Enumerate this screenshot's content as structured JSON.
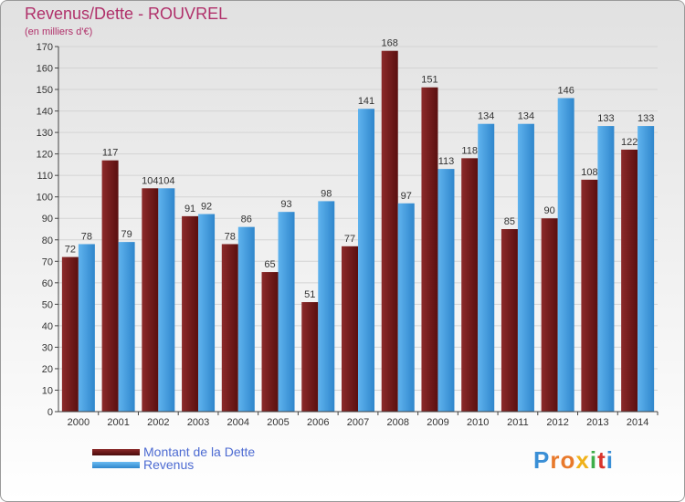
{
  "header": {
    "title": "Revenus/Dette - ROUVREL",
    "subtitle": "(en milliers d'€)"
  },
  "colors": {
    "dette": "#7a1f1f",
    "revenus": "#4aa3e3",
    "title": "#b0306a",
    "legend_text": "#4d6bd2"
  },
  "legend": {
    "items": [
      {
        "label": "Montant de la Dette",
        "color": "#6b1414"
      },
      {
        "label": "Revenus",
        "color": "#4aa3e3"
      }
    ]
  },
  "logo": {
    "text": "Proxiti"
  },
  "chart_data": {
    "type": "bar",
    "title": "Revenus/Dette - ROUVREL",
    "subtitle": "(en milliers d'€)",
    "xlabel": "",
    "ylabel": "",
    "categories": [
      "2000",
      "2001",
      "2002",
      "2003",
      "2004",
      "2005",
      "2006",
      "2007",
      "2008",
      "2009",
      "2010",
      "2011",
      "2012",
      "2013",
      "2014"
    ],
    "series": [
      {
        "name": "Montant de la Dette",
        "values": [
          72,
          117,
          104,
          91,
          78,
          65,
          51,
          77,
          168,
          151,
          118,
          85,
          90,
          108,
          122
        ]
      },
      {
        "name": "Revenus",
        "values": [
          78,
          79,
          104,
          92,
          86,
          93,
          98,
          141,
          97,
          113,
          134,
          134,
          146,
          133,
          133
        ]
      }
    ],
    "ylim": [
      0,
      170
    ],
    "yticks": [
      0,
      10,
      20,
      30,
      40,
      50,
      60,
      70,
      80,
      90,
      100,
      110,
      120,
      130,
      140,
      150,
      160,
      170
    ],
    "grid": true,
    "legend_position": "bottom-left"
  }
}
